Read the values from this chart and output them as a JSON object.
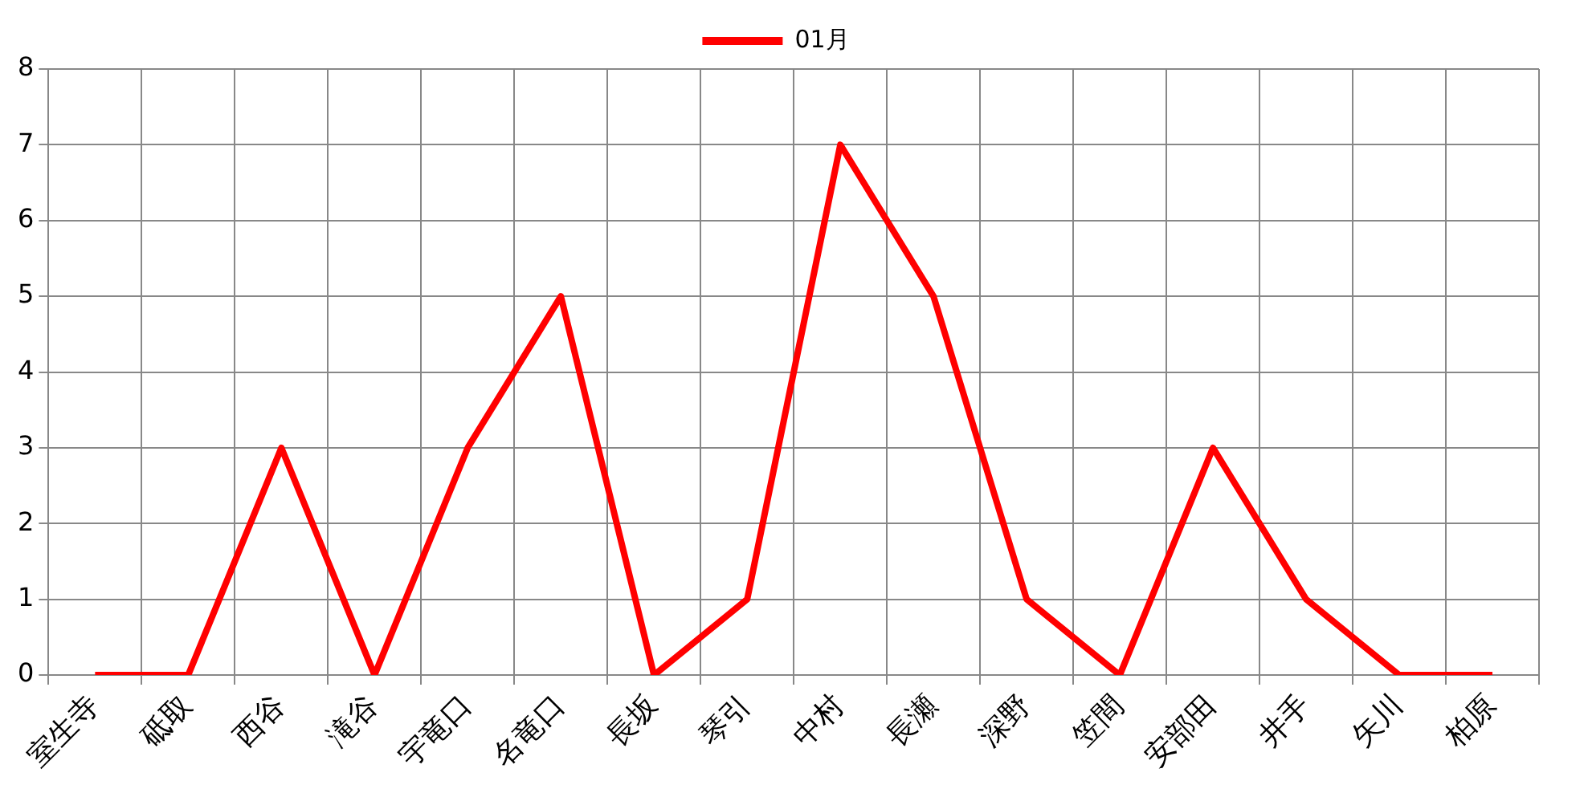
{
  "chart_data": {
    "type": "line",
    "categories": [
      "室生寺",
      "砥取",
      "西谷",
      "滝谷",
      "宇竜口",
      "名竜口",
      "長坂",
      "琴引",
      "中村",
      "長瀬",
      "深野",
      "笠間",
      "安部田",
      "井手",
      "矢川",
      "柏原"
    ],
    "series": [
      {
        "name": "01月",
        "color": "#ff0000",
        "values": [
          0,
          0,
          3,
          0,
          3,
          5,
          0,
          1,
          7,
          5,
          1,
          0,
          3,
          1,
          0,
          0
        ]
      }
    ],
    "ylim": [
      0,
      8
    ],
    "yticks": [
      0,
      1,
      2,
      3,
      4,
      5,
      6,
      7,
      8
    ],
    "grid": true,
    "legend": "top",
    "marker": "none"
  }
}
